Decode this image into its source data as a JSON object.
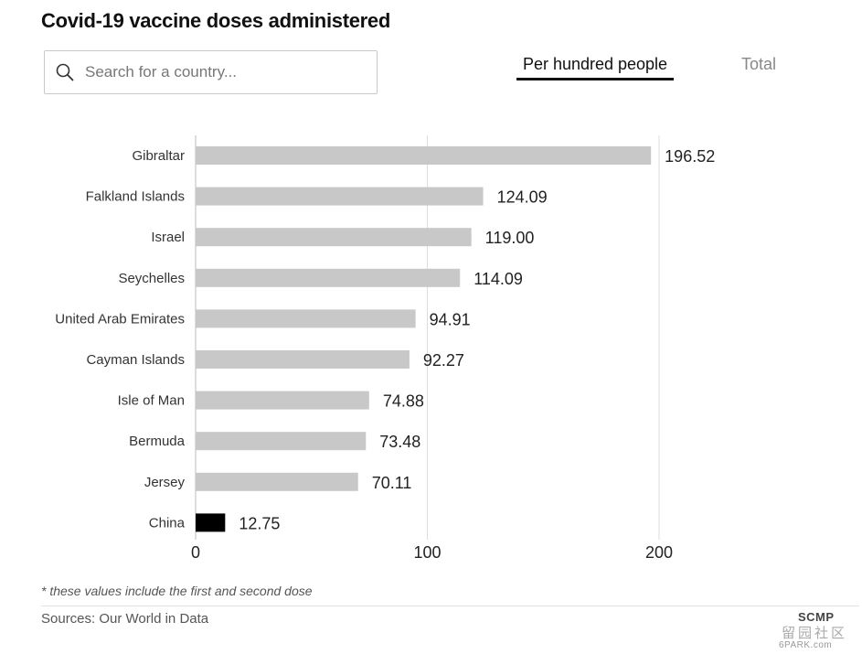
{
  "header": {
    "title": "Covid-19 vaccine doses administered"
  },
  "search": {
    "placeholder": "Search for a country...",
    "icon": "search-icon"
  },
  "tabs": [
    {
      "label": "Per hundred people",
      "active": true
    },
    {
      "label": "Total",
      "active": false
    }
  ],
  "chart_data": {
    "type": "bar",
    "orientation": "horizontal",
    "title": "Covid-19 vaccine doses administered",
    "xlabel": "",
    "ylabel": "",
    "xlim": [
      0,
      200
    ],
    "x_ticks": [
      0,
      100,
      200
    ],
    "grid": true,
    "categories": [
      "Gibraltar",
      "Falkland Islands",
      "Israel",
      "Seychelles",
      "United Arab Emirates",
      "Cayman Islands",
      "Isle of Man",
      "Bermuda",
      "Jersey",
      "China"
    ],
    "values": [
      196.52,
      124.09,
      119.0,
      114.09,
      94.91,
      92.27,
      74.88,
      73.48,
      70.11,
      12.75
    ],
    "value_labels": [
      "196.52",
      "124.09",
      "119.00",
      "114.09",
      "94.91",
      "92.27",
      "74.88",
      "73.48",
      "70.11",
      "12.75"
    ],
    "highlight": "China",
    "colors": {
      "bar": "#c8c8c8",
      "highlight": "#000000",
      "grid": "#dddddd"
    }
  },
  "footer": {
    "footnote": "* these values include the first and second dose",
    "sources": "Sources: Our World in Data",
    "logo": "SCMP",
    "watermark": "留园社区",
    "watermark_sub": "6PARK.com"
  }
}
